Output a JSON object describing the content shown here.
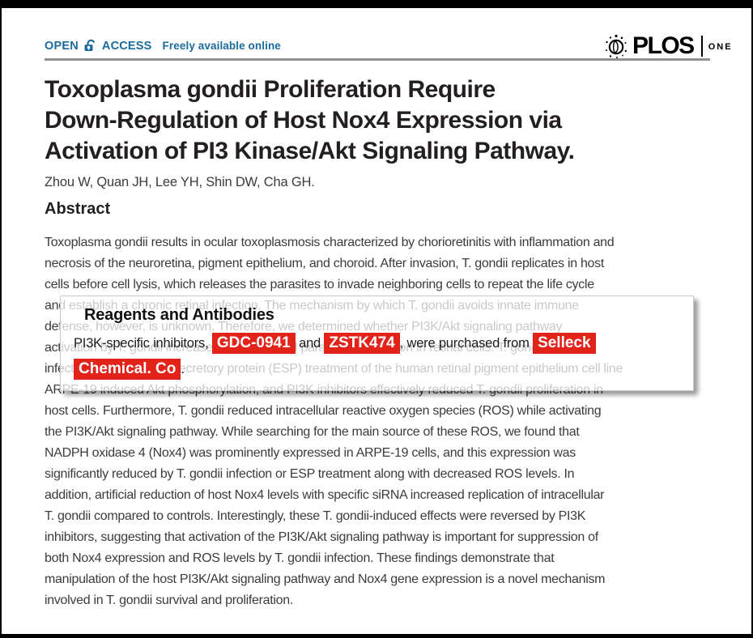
{
  "colors": {
    "accent_blue": "#1b6a9e",
    "highlight_red": "#e2231a",
    "title_color": "#231f20"
  },
  "header": {
    "open_access": {
      "open": "OPEN",
      "access": "ACCESS",
      "tagline": "Freely available online"
    },
    "journal": {
      "name": "PLOS",
      "edition": "ONE"
    }
  },
  "article": {
    "title_lines": [
      "Toxoplasma gondii Proliferation Require",
      "Down-Regulation of Host Nox4 Expression via",
      "Activation of PI3 Kinase/Akt Signaling Pathway."
    ],
    "authors": "Zhou W, Quan JH, Lee YH, Shin DW, Cha GH.",
    "section_heading": "Abstract",
    "abstract_lines": [
      "Toxoplasma gondii results in ocular toxoplasmosis characterized by chorioretinitis with inflammation and",
      "necrosis of the neuroretina, pigment epithelium, and choroid. After invasion, T. gondii replicates in host",
      "cells before cell lysis, which releases the parasites to invade neighboring cells to repeat the life cycle",
      "and establish a chronic retinal infection. The mechanism by which T. gondii avoids innate immune",
      "defense, however, is unknown. Therefore, we determined whether PI3K/Akt signaling pathway",
      "activation by T. gondii increases infectivity and parasite proliferation in retinal cells. T. gondii",
      "infection and excretory/secretory protein (ESP) treatment of the human retinal pigment epithelium cell line",
      "ARPE-19 induced Akt phosphorylation, and PI3K inhibitors effectively reduced T. gondii proliferation in",
      "host cells. Furthermore, T. gondii reduced intracellular reactive oxygen species (ROS) while activating",
      "the PI3K/Akt signaling pathway. While searching for the main source of these ROS, we found that",
      "NADPH oxidase 4 (Nox4) was prominently expressed in ARPE-19 cells, and this expression was",
      "significantly reduced by T. gondii infection or ESP treatment along with decreased ROS levels. In",
      "addition, artificial reduction of host Nox4 levels with specific siRNA increased replication of intracellular",
      "T. gondii compared to controls. Interestingly, these T. gondii-induced effects were reversed by PI3K",
      "inhibitors, suggesting that activation of the PI3K/Akt signaling pathway is important for suppression of",
      "both Nox4 expression and ROS levels by T. gondii infection. These findings demonstrate that",
      "manipulation of the host PI3K/Akt signaling pathway and Nox4 gene expression is a novel mechanism",
      "involved in T. gondii survival and proliferation."
    ]
  },
  "overlay": {
    "title": "Reagents and Antibodies",
    "segments": [
      {
        "text": "PI3K-specific inhibitors, ",
        "highlight": false
      },
      {
        "text": "GDC-0941",
        "highlight": true
      },
      {
        "text": " and ",
        "highlight": false
      },
      {
        "text": "ZSTK474",
        "highlight": true
      },
      {
        "text": ", were purchased from ",
        "highlight": false
      },
      {
        "text": "Selleck",
        "highlight": true
      },
      {
        "break": true
      },
      {
        "text": "Chemical. Co",
        "highlight": true
      },
      {
        "text": ".",
        "highlight": false
      }
    ]
  }
}
